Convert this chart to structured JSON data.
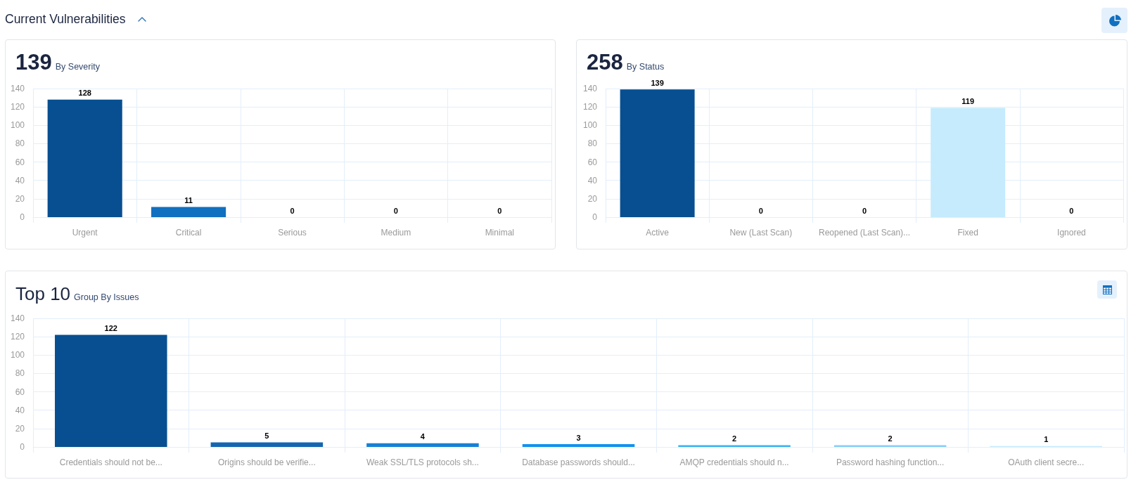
{
  "chart_data": [
    {
      "type": "other",
      "title": "Current Vulnerabilities"
    },
    {
      "type": "bar",
      "title": "139",
      "subtitle": "By Severity",
      "categories": [
        "Urgent",
        "Critical",
        "Serious",
        "Medium",
        "Minimal"
      ],
      "values": [
        128,
        11,
        0,
        0,
        0
      ],
      "colors": [
        "#074f91",
        "#1170c0",
        "#1a80d6",
        "#3bb5f3",
        "#c5ebfd"
      ],
      "ylim": [
        0,
        140
      ],
      "yticks": [
        0,
        20,
        40,
        60,
        80,
        100,
        120,
        140
      ],
      "grid": true,
      "data_labels": true
    },
    {
      "type": "bar",
      "title": "258",
      "subtitle": "By Status",
      "categories": [
        "Active",
        "New (Last Scan)",
        "Reopened (Last Scan)...",
        "Fixed",
        "Ignored"
      ],
      "values": [
        139,
        0,
        0,
        119,
        0
      ],
      "colors": [
        "#074f91",
        "#1170c0",
        "#1a80d6",
        "#c5ebfd",
        "#3bb5f3"
      ],
      "ylim": [
        0,
        140
      ],
      "yticks": [
        0,
        20,
        40,
        60,
        80,
        100,
        120,
        140
      ],
      "grid": true,
      "data_labels": true
    },
    {
      "type": "bar",
      "title": "Top 10",
      "subtitle": "Group By Issues",
      "categories": [
        "Credentials should not be...",
        "Origins should be verifie...",
        "Weak SSL/TLS protocols sh...",
        "Database passwords should...",
        "AMQP credentials should n...",
        "Password hashing function...",
        "OAuth client secre..."
      ],
      "values": [
        122,
        5,
        4,
        3,
        2,
        2,
        1
      ],
      "colors": [
        "#074f91",
        "#1466b0",
        "#1780d4",
        "#1291ef",
        "#38b4f2",
        "#86cff8",
        "#c5ebfd"
      ],
      "ylim": [
        0,
        140
      ],
      "yticks": [
        0,
        20,
        40,
        60,
        80,
        100,
        120,
        140
      ],
      "grid": true,
      "data_labels": true
    }
  ]
}
